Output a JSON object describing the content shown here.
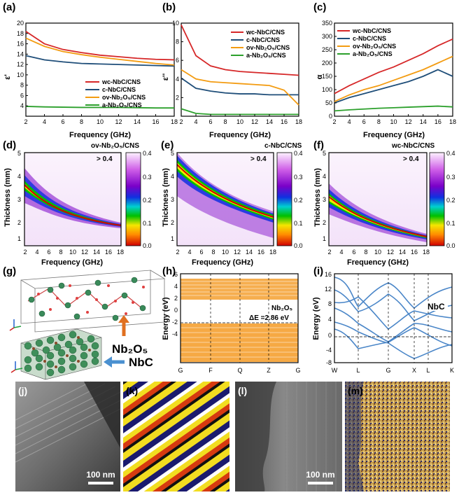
{
  "panels": {
    "a": {
      "letter": "(a)",
      "ylabel": "ε'",
      "xlabel": "Frequency (GHz)"
    },
    "b": {
      "letter": "(b)",
      "ylabel": "ε''",
      "xlabel": "Frequency (GHz)"
    },
    "c": {
      "letter": "(c)",
      "ylabel": "α",
      "xlabel": "Frequency (GHz)"
    },
    "d": {
      "letter": "(d)",
      "ylabel": "Thickness (mm)",
      "xlabel": "Frequency (GHz)",
      "title": "ov-Nb₂O₅/CNS",
      "note": "> 0.4"
    },
    "e": {
      "letter": "(e)",
      "ylabel": "Thickness (mm)",
      "xlabel": "Frequency (GHz)",
      "title": "c-NbC/CNS",
      "note": "> 0.4"
    },
    "f": {
      "letter": "(f)",
      "ylabel": "Thickness (mm)",
      "xlabel": "Frequency (GHz)",
      "title": "wc-NbC/CNS",
      "note": "> 0.4"
    },
    "g": {
      "letter": "(g)",
      "label_oxide": "Nb₂O₅",
      "label_carbide": "NbC"
    },
    "h": {
      "letter": "(h)",
      "ylabel": "Energy (eV)",
      "compound": "Nb₂O₅",
      "gap": "ΔE =2.86 eV"
    },
    "i": {
      "letter": "(i)",
      "ylabel": "Energy (eV)",
      "compound": "NbC"
    },
    "j": {
      "letter": "(j)",
      "scale": "100 nm"
    },
    "k": {
      "letter": "(k)"
    },
    "l": {
      "letter": "(l)",
      "scale": "100 nm"
    },
    "m": {
      "letter": "(m)"
    }
  },
  "legend": [
    "wc-NbC/CNS",
    "c-NbC/CNS",
    "ov-Nb₂O₅/CNS",
    "a-Nb₂O₅/CNS"
  ],
  "colors": {
    "wc": "#d62728",
    "c": "#1f4e79",
    "ov": "#f39c12",
    "a": "#2ca02c",
    "band_h": "#f5a030",
    "band_i": "#4a86c8"
  },
  "colorbar_ticks": [
    "0.0",
    "0.1",
    "0.2",
    "0.3",
    "0.4"
  ],
  "chart_data": [
    {
      "type": "line",
      "panel": "a",
      "x": [
        2,
        4,
        6,
        8,
        10,
        12,
        14,
        16,
        18
      ],
      "xlim": [
        2,
        18
      ],
      "ylim": [
        2,
        20
      ],
      "xticks": [
        "2",
        "4",
        "6",
        "8",
        "10",
        "12",
        "14",
        "16",
        "18"
      ],
      "yticks": [
        "4",
        "6",
        "8",
        "10",
        "12",
        "14",
        "16",
        "18",
        "20"
      ],
      "series": [
        {
          "name": "wc-NbC/CNS",
          "values": [
            18.4,
            16.0,
            14.9,
            14.3,
            13.8,
            13.5,
            13.2,
            13.0,
            12.9
          ]
        },
        {
          "name": "c-NbC/CNS",
          "values": [
            13.7,
            12.9,
            12.5,
            12.2,
            12.1,
            12.0,
            11.9,
            11.8,
            11.7
          ]
        },
        {
          "name": "ov-Nb₂O₅/CNS",
          "values": [
            17.1,
            15.5,
            14.5,
            13.9,
            13.4,
            13.0,
            12.6,
            12.2,
            11.9
          ]
        },
        {
          "name": "a-Nb₂O₅/CNS",
          "values": [
            3.9,
            3.8,
            3.75,
            3.7,
            3.7,
            3.7,
            3.65,
            3.6,
            3.6
          ]
        }
      ]
    },
    {
      "type": "line",
      "panel": "b",
      "x": [
        2,
        4,
        6,
        8,
        10,
        12,
        14,
        16,
        18
      ],
      "xlim": [
        2,
        18
      ],
      "ylim": [
        0,
        10
      ],
      "xticks": [
        "2",
        "4",
        "6",
        "8",
        "10",
        "12",
        "14",
        "16",
        "18"
      ],
      "yticks": [
        "2",
        "4",
        "6",
        "8",
        "10"
      ],
      "series": [
        {
          "name": "wc-NbC/CNS",
          "values": [
            9.8,
            6.5,
            5.4,
            5.0,
            4.8,
            4.7,
            4.6,
            4.5,
            4.4
          ]
        },
        {
          "name": "c-NbC/CNS",
          "values": [
            4.1,
            3.0,
            2.7,
            2.5,
            2.4,
            2.4,
            2.3,
            2.3,
            2.3
          ]
        },
        {
          "name": "ov-Nb₂O₅/CNS",
          "values": [
            5.0,
            4.0,
            3.7,
            3.6,
            3.5,
            3.4,
            3.3,
            2.8,
            1.2
          ]
        },
        {
          "name": "a-Nb₂O₅/CNS",
          "values": [
            0.8,
            0.3,
            0.2,
            0.2,
            0.2,
            0.2,
            0.2,
            0.2,
            0.2
          ]
        }
      ]
    },
    {
      "type": "line",
      "panel": "c",
      "x": [
        2,
        4,
        6,
        8,
        10,
        12,
        14,
        16,
        18
      ],
      "xlim": [
        2,
        18
      ],
      "ylim": [
        0,
        350
      ],
      "xticks": [
        "2",
        "4",
        "6",
        "8",
        "10",
        "12",
        "14",
        "16",
        "18"
      ],
      "yticks": [
        "0",
        "50",
        "100",
        "150",
        "200",
        "250",
        "300",
        "350"
      ],
      "series": [
        {
          "name": "wc-NbC/CNS",
          "values": [
            85,
            115,
            140,
            165,
            185,
            210,
            235,
            265,
            290
          ]
        },
        {
          "name": "c-NbC/CNS",
          "values": [
            50,
            70,
            85,
            100,
            115,
            130,
            150,
            175,
            150
          ]
        },
        {
          "name": "ov-Nb₂O₅/CNS",
          "values": [
            55,
            80,
            100,
            115,
            135,
            155,
            175,
            200,
            225
          ]
        },
        {
          "name": "a-Nb₂O₅/CNS",
          "values": [
            20,
            24,
            27,
            30,
            32,
            34,
            36,
            38,
            35
          ]
        }
      ]
    }
  ]
}
